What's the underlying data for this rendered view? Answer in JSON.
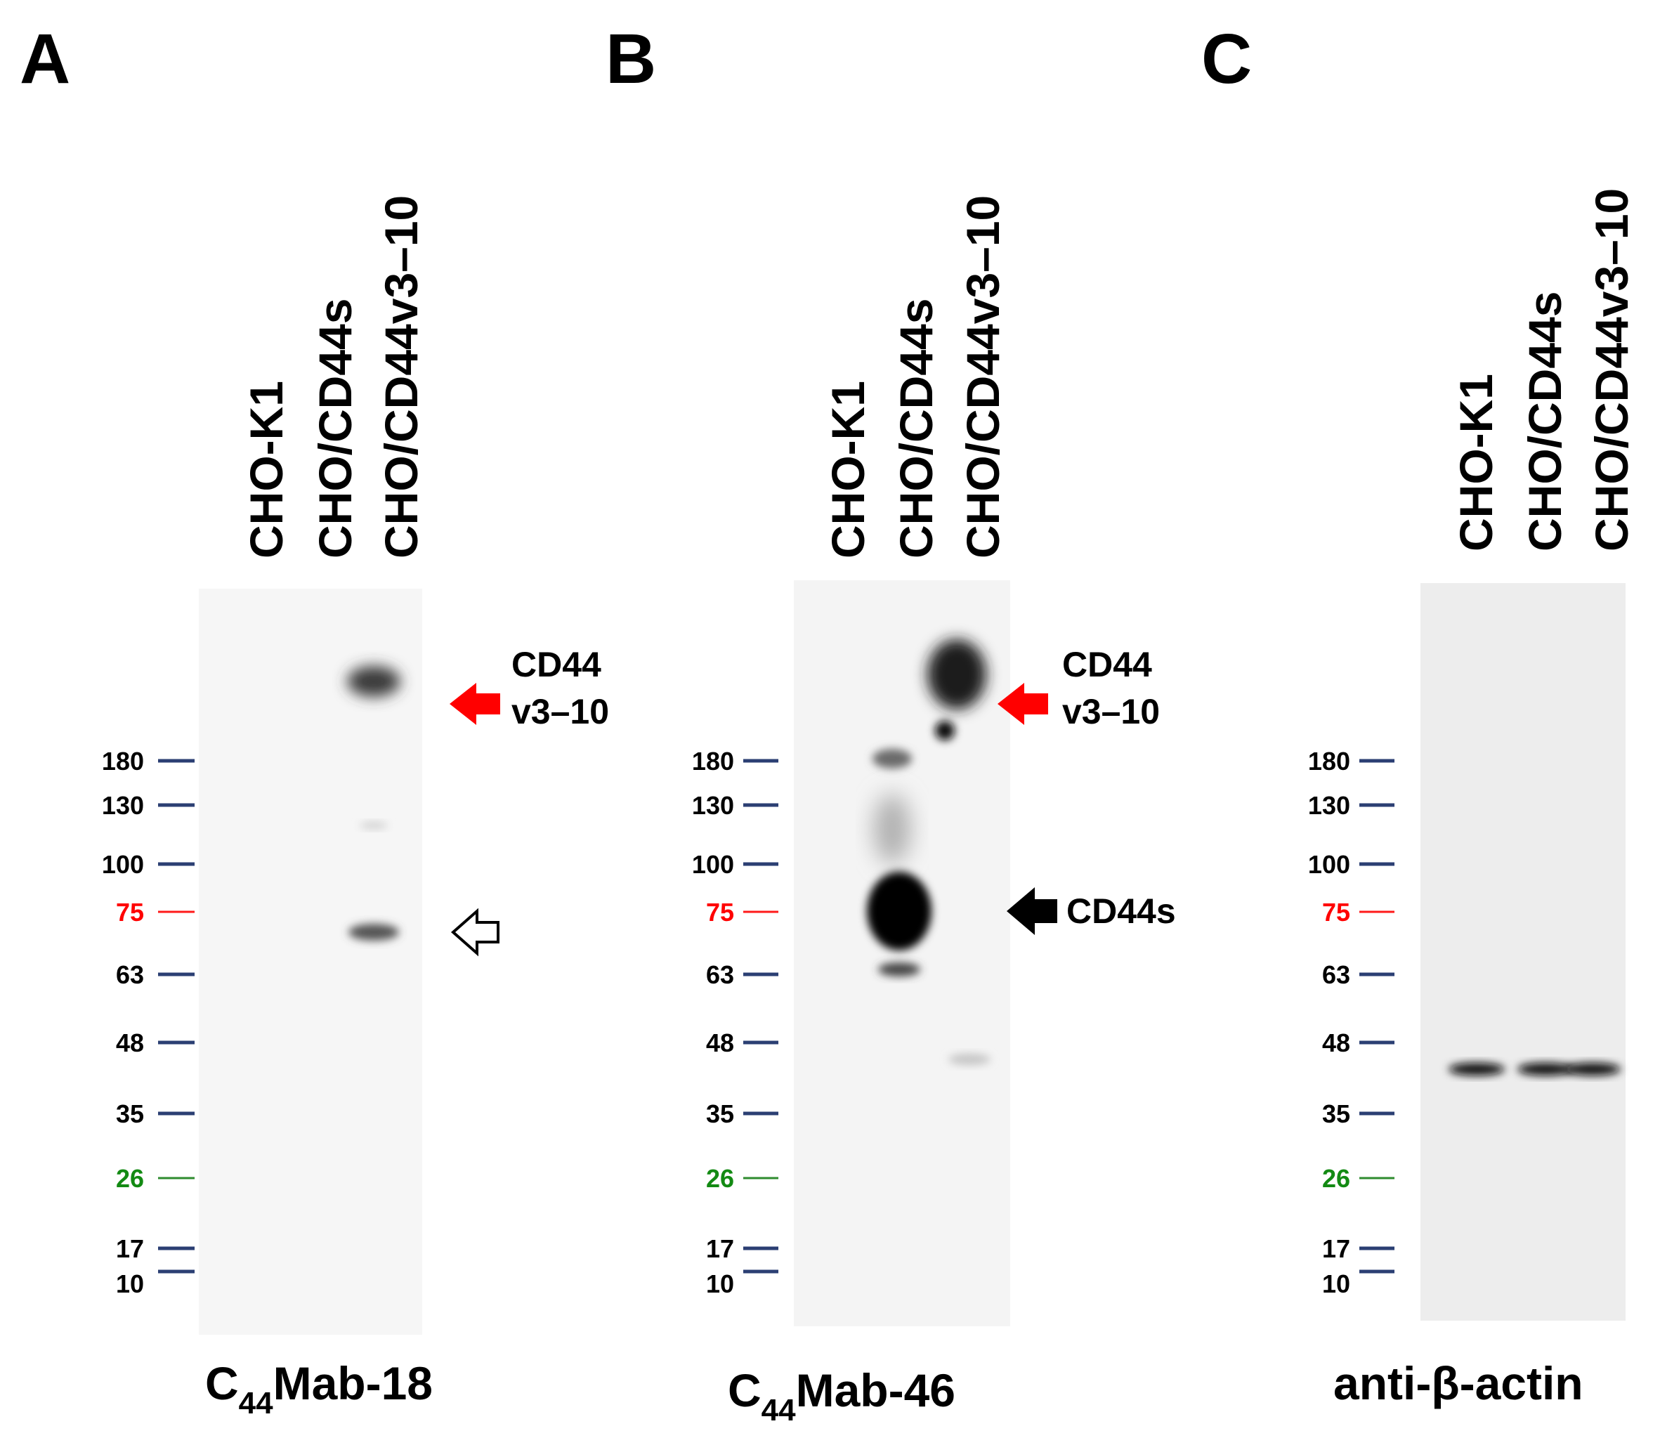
{
  "marker_colors": {
    "default": "#2b3f73",
    "red": "#ff1a1a",
    "green": "#2e8b2e",
    "label_default": "#000000",
    "label_red": "#ff0000",
    "label_green": "#138a13"
  },
  "arrow_colors": {
    "red": "#ff0000",
    "black": "#000000",
    "open": "#ffffff"
  },
  "panels": [
    {
      "letter": "A",
      "lanes": [
        "CHO-K1",
        "CHO/CD44s",
        "CHO/CD44v3–10"
      ],
      "markers": [
        {
          "kda": "180",
          "color": "default"
        },
        {
          "kda": "130",
          "color": "default"
        },
        {
          "kda": "100",
          "color": "default"
        },
        {
          "kda": "75",
          "color": "red"
        },
        {
          "kda": "63",
          "color": "default"
        },
        {
          "kda": "48",
          "color": "default"
        },
        {
          "kda": "35",
          "color": "default"
        },
        {
          "kda": "26",
          "color": "green"
        },
        {
          "kda": "17",
          "color": "default"
        },
        {
          "kda": "10",
          "color": "default"
        }
      ],
      "arrows": [
        {
          "style": "red",
          "label_lines": [
            "CD44",
            "v3–10"
          ]
        },
        {
          "style": "open",
          "label_lines": []
        }
      ],
      "antibody": {
        "prefix": "C",
        "subscript": "44",
        "suffix": "Mab-18"
      }
    },
    {
      "letter": "B",
      "lanes": [
        "CHO-K1",
        "CHO/CD44s",
        "CHO/CD44v3–10"
      ],
      "markers": [
        {
          "kda": "180",
          "color": "default"
        },
        {
          "kda": "130",
          "color": "default"
        },
        {
          "kda": "100",
          "color": "default"
        },
        {
          "kda": "75",
          "color": "red"
        },
        {
          "kda": "63",
          "color": "default"
        },
        {
          "kda": "48",
          "color": "default"
        },
        {
          "kda": "35",
          "color": "default"
        },
        {
          "kda": "26",
          "color": "green"
        },
        {
          "kda": "17",
          "color": "default"
        },
        {
          "kda": "10",
          "color": "default"
        }
      ],
      "arrows": [
        {
          "style": "red",
          "label_lines": [
            "CD44",
            "v3–10"
          ]
        },
        {
          "style": "black",
          "label_lines": [
            "CD44s"
          ]
        }
      ],
      "antibody": {
        "prefix": "C",
        "subscript": "44",
        "suffix": "Mab-46"
      }
    },
    {
      "letter": "C",
      "lanes": [
        "CHO-K1",
        "CHO/CD44s",
        "CHO/CD44v3–10"
      ],
      "markers": [
        {
          "kda": "180",
          "color": "default"
        },
        {
          "kda": "130",
          "color": "default"
        },
        {
          "kda": "100",
          "color": "default"
        },
        {
          "kda": "75",
          "color": "red"
        },
        {
          "kda": "63",
          "color": "default"
        },
        {
          "kda": "48",
          "color": "default"
        },
        {
          "kda": "35",
          "color": "default"
        },
        {
          "kda": "26",
          "color": "green"
        },
        {
          "kda": "17",
          "color": "default"
        },
        {
          "kda": "10",
          "color": "default"
        }
      ],
      "arrows": [],
      "antibody": {
        "prefix": "anti-β-actin",
        "subscript": "",
        "suffix": ""
      }
    }
  ]
}
